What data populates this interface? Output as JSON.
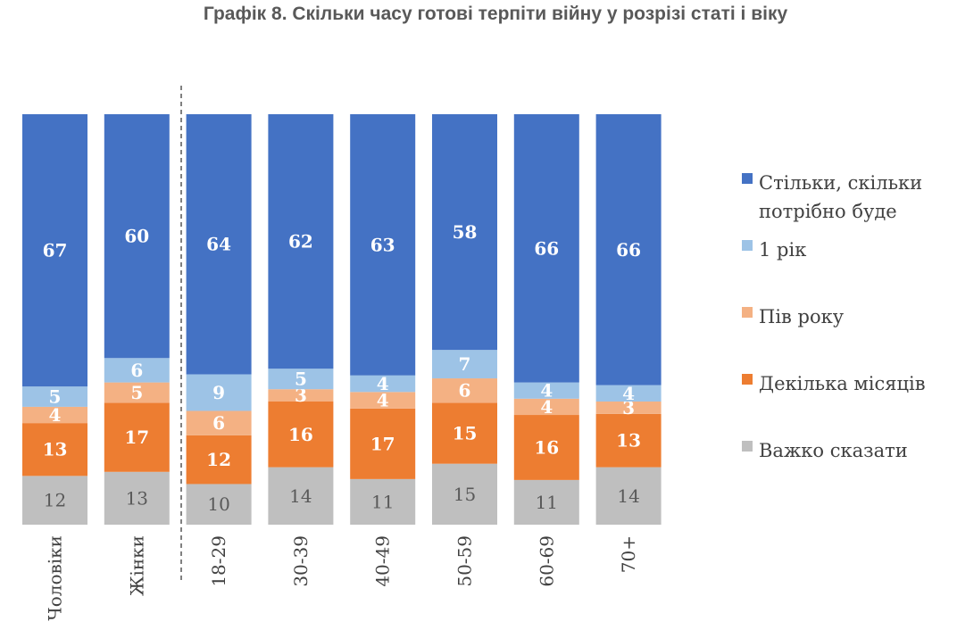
{
  "chart_data": {
    "type": "bar",
    "stacked": true,
    "title": "Графік 8. Скільки часу готові терпіти війну у розрізі статі і віку",
    "categories": [
      "Чоловіки",
      "Жінки",
      "18-29",
      "30-39",
      "40-49",
      "50-59",
      "60-69",
      "70+"
    ],
    "group_divider_after": 1,
    "series": [
      {
        "name": "Важко сказати",
        "color": "#BFBFBF",
        "values": [
          12,
          13,
          10,
          14,
          11,
          15,
          11,
          14
        ]
      },
      {
        "name": "Декілька місяців",
        "color": "#ED7D31",
        "values": [
          13,
          17,
          12,
          16,
          17,
          15,
          16,
          13
        ]
      },
      {
        "name": "Пів року",
        "color": "#F4B183",
        "values": [
          4,
          5,
          6,
          3,
          4,
          6,
          4,
          3
        ]
      },
      {
        "name": "1 рік",
        "color": "#9DC3E6",
        "values": [
          5,
          6,
          9,
          5,
          4,
          7,
          4,
          4
        ]
      },
      {
        "name": "Стільки, скільки потрібно буде",
        "color": "#4472C4",
        "values": [
          67,
          60,
          64,
          62,
          63,
          58,
          66,
          66
        ]
      }
    ],
    "legend_order": [
      "Стільки, скільки потрібно буде",
      "1 рік",
      "Пів року",
      "Декілька місяців",
      "Важко сказати"
    ],
    "legend_lines": [
      [
        "Стільки, скільки",
        "потрібно буде"
      ],
      [
        "1 рік"
      ],
      [
        "Пів року"
      ],
      [
        "Декілька місяців"
      ],
      [
        "Важко сказати"
      ]
    ],
    "legend_position": "right",
    "category_label_orientation": "vertical",
    "grid": false
  }
}
